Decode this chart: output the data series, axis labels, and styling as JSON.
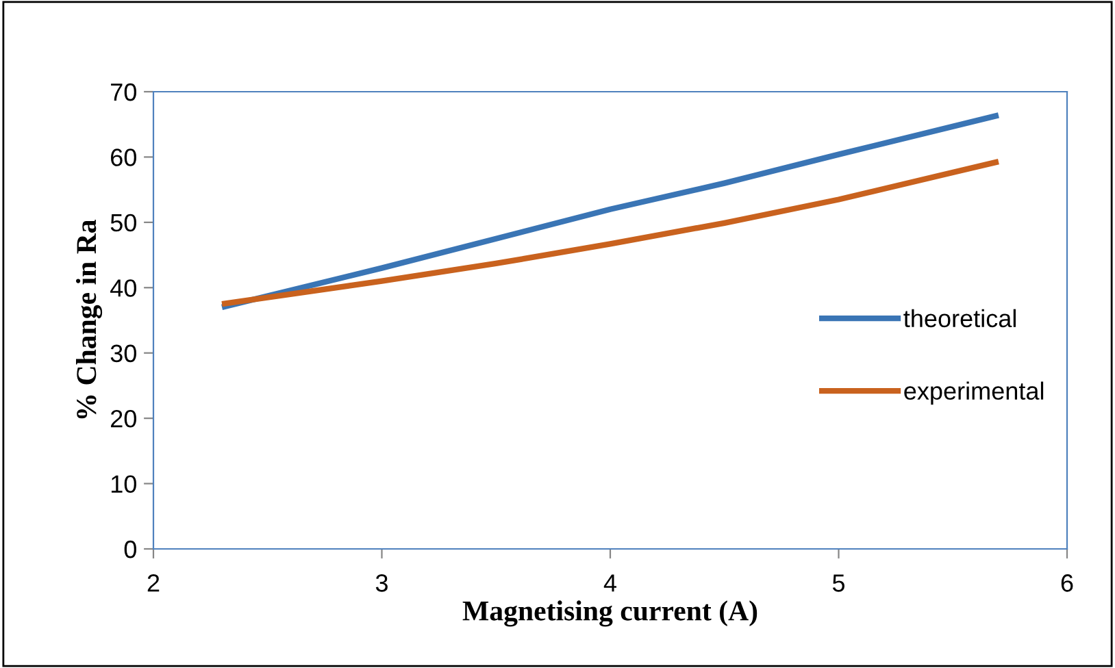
{
  "chart_data": {
    "type": "line",
    "xlabel": "Magnetising current (A)",
    "ylabel": "% Change in Ra",
    "xlim": [
      2,
      6
    ],
    "ylim": [
      0,
      70
    ],
    "xticks": [
      2,
      3,
      4,
      5,
      6
    ],
    "yticks": [
      0,
      10,
      20,
      30,
      40,
      50,
      60,
      70
    ],
    "grid": false,
    "legend": "right",
    "marker": "none",
    "line_style": "solid",
    "series": [
      {
        "name": "theoretical",
        "color": "#3a75b5",
        "x": [
          2.3,
          3,
          3.5,
          4,
          4.5,
          5,
          5.7
        ],
        "values": [
          37,
          43,
          47.5,
          52,
          56,
          60.4,
          66.4
        ]
      },
      {
        "name": "experimental",
        "color": "#c9621e",
        "x": [
          2.3,
          3,
          3.5,
          4,
          4.5,
          5,
          5.7
        ],
        "values": [
          37.5,
          41,
          43.7,
          46.7,
          49.9,
          53.5,
          59.3
        ]
      }
    ]
  }
}
